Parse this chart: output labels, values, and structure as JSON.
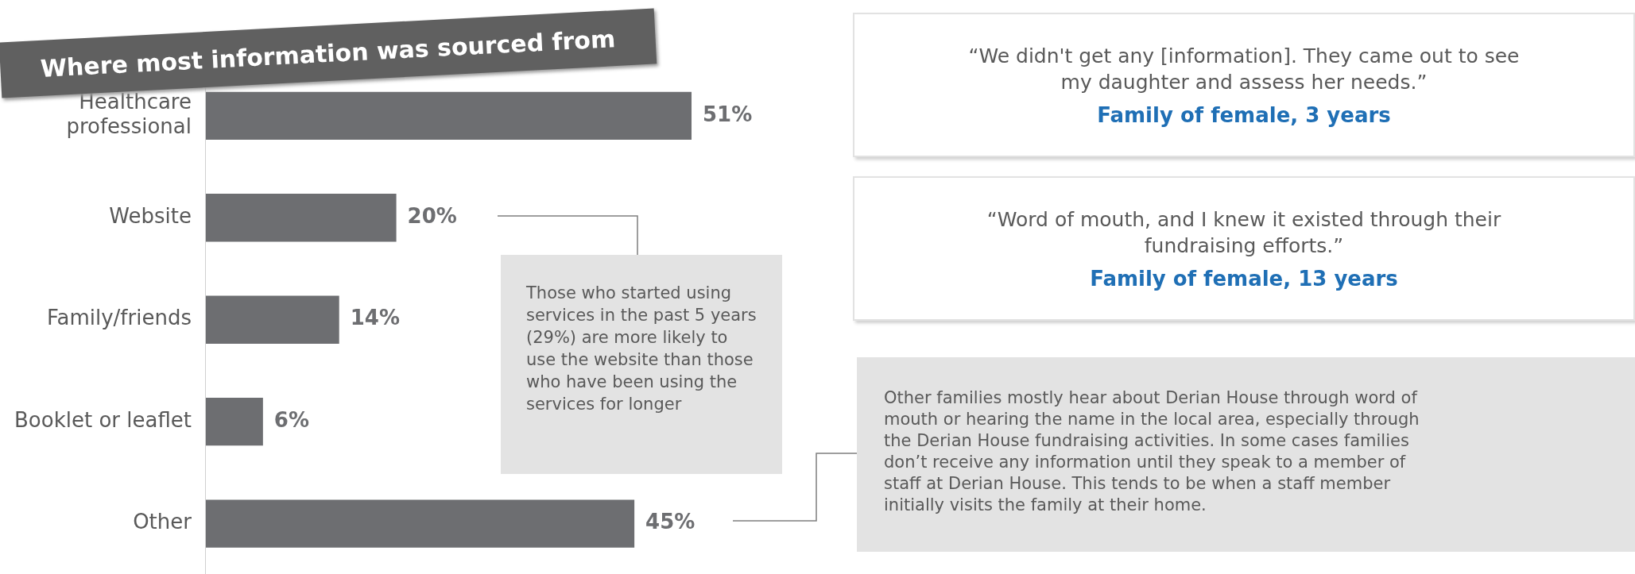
{
  "chart_data": {
    "type": "bar",
    "orientation": "horizontal",
    "title": "Where most information was sourced from",
    "categories": [
      "Healthcare professional",
      "Website",
      "Family/friends",
      "Booklet or leaflet",
      "Other"
    ],
    "values": [
      51,
      20,
      14,
      6,
      45
    ],
    "color": "#6d6e71",
    "tick_labels": "y",
    "value_labels": [
      "51%",
      "20%",
      "14%",
      "6%",
      "45%"
    ],
    "annotations": [
      "Those who started using services in the past 5 years (29%) are more likely to use the website than those who have been using the services for longer",
      "“We didn't get any [information]. They came out to see my daughter and assess her needs.”",
      "Family of female, 3 years",
      "“Word of mouth, and I knew it existed through their fundraising efforts.”",
      "Family of female, 13 years",
      "Other families mostly hear about Derian House through word of mouth or hearing the name in the local area, especially through the Derian House fundraising activities. In some cases families don’t receive any information until they speak to a member of staff at Derian House. This tends to be when a staff member initially visits the family at their home."
    ]
  }
}
